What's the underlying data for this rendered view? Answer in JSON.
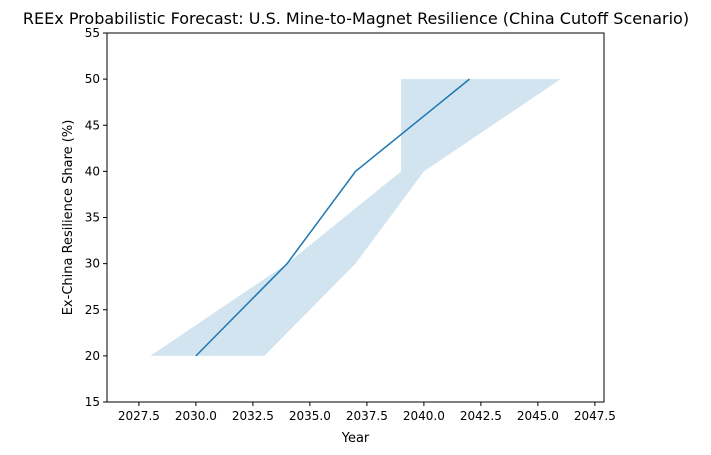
{
  "chart_data": {
    "type": "line",
    "title": "REEx Probabilistic Forecast: U.S. Mine-to-Magnet Resilience (China Cutoff Scenario)",
    "xlabel": "Year",
    "ylabel": "Ex-China Resilience Share (%)",
    "xlim": [
      2026.1,
      2047.9
    ],
    "ylim": [
      15,
      55
    ],
    "xticks": [
      2027.5,
      2030.0,
      2032.5,
      2035.0,
      2037.5,
      2040.0,
      2042.5,
      2045.0,
      2047.5
    ],
    "xtick_labels": [
      "2027.5",
      "2030.0",
      "2032.5",
      "2035.0",
      "2037.5",
      "2040.0",
      "2042.5",
      "2045.0",
      "2047.5"
    ],
    "yticks": [
      15,
      20,
      25,
      30,
      35,
      40,
      45,
      50,
      55
    ],
    "ytick_labels": [
      "15",
      "20",
      "25",
      "30",
      "35",
      "40",
      "45",
      "50",
      "55"
    ],
    "grid": false,
    "legend": "none",
    "series": [
      {
        "x": [
          2030,
          2034,
          2037,
          2042
        ],
        "y": [
          20,
          30,
          40,
          50
        ],
        "color": "#1f77b4"
      }
    ],
    "band": {
      "color": "#1f77b4",
      "opacity": 0.2,
      "y": [
        20,
        30,
        40,
        50
      ],
      "x_low": [
        2033,
        2037,
        2040,
        2046
      ],
      "x_high": [
        2028,
        2034,
        2039,
        2039
      ]
    }
  }
}
